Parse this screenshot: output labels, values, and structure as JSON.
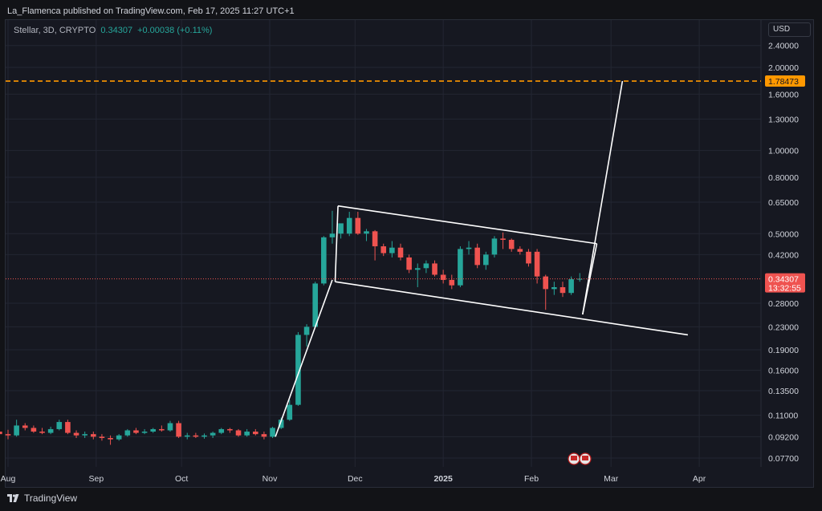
{
  "header": {
    "publisher_line": "La_Flamenca published on TradingView.com, Feb 17, 2025 11:27 UTC+1"
  },
  "legend": {
    "symbol": "Stellar, 3D, CRYPTO",
    "price": "0.34307",
    "change": "+0.00038 (+0.11%)"
  },
  "axis": {
    "currency": "USD"
  },
  "footer": {
    "brand": "TradingView"
  },
  "colors": {
    "up": "#26a69a",
    "down": "#ef5350",
    "target_line": "#ff9800",
    "channel": "#ffffff",
    "price_tag": "#ef5350",
    "background": "#161821"
  },
  "chart_data": {
    "type": "candlestick",
    "y_scale": "log",
    "ylim": [
      0.068,
      2.9
    ],
    "price_ticks": [
      "2.40000",
      "2.00000",
      "1.60000",
      "1.30000",
      "1.00000",
      "0.80000",
      "0.65000",
      "0.50000",
      "0.42000",
      "0.28000",
      "0.23000",
      "0.19000",
      "0.16000",
      "0.13500",
      "0.11000",
      "0.09200",
      "0.07700"
    ],
    "x_labels": [
      {
        "label": "Aug",
        "date": "2024-08-01",
        "bold": false
      },
      {
        "label": "Sep",
        "date": "2024-09-01",
        "bold": false
      },
      {
        "label": "Oct",
        "date": "2024-10-01",
        "bold": false
      },
      {
        "label": "Nov",
        "date": "2024-11-01",
        "bold": false
      },
      {
        "label": "Dec",
        "date": "2024-12-01",
        "bold": false
      },
      {
        "label": "2025",
        "date": "2025-01-01",
        "bold": true
      },
      {
        "label": "Feb",
        "date": "2025-02-01",
        "bold": false
      },
      {
        "label": "Mar",
        "date": "2025-03-01",
        "bold": false
      },
      {
        "label": "Apr",
        "date": "2025-04-01",
        "bold": false
      }
    ],
    "candles": [
      {
        "t": "2024-07-29",
        "o": 0.096,
        "h": 0.1,
        "l": 0.076,
        "c": 0.094
      },
      {
        "t": "2024-08-01",
        "o": 0.094,
        "h": 0.0975,
        "l": 0.09,
        "c": 0.093
      },
      {
        "t": "2024-08-04",
        "o": 0.093,
        "h": 0.106,
        "l": 0.092,
        "c": 0.101
      },
      {
        "t": "2024-08-07",
        "o": 0.101,
        "h": 0.103,
        "l": 0.097,
        "c": 0.099
      },
      {
        "t": "2024-08-10",
        "o": 0.099,
        "h": 0.101,
        "l": 0.095,
        "c": 0.096
      },
      {
        "t": "2024-08-13",
        "o": 0.096,
        "h": 0.099,
        "l": 0.094,
        "c": 0.095
      },
      {
        "t": "2024-08-16",
        "o": 0.095,
        "h": 0.1,
        "l": 0.094,
        "c": 0.098
      },
      {
        "t": "2024-08-19",
        "o": 0.098,
        "h": 0.106,
        "l": 0.097,
        "c": 0.104
      },
      {
        "t": "2024-08-22",
        "o": 0.104,
        "h": 0.106,
        "l": 0.094,
        "c": 0.095
      },
      {
        "t": "2024-08-25",
        "o": 0.095,
        "h": 0.097,
        "l": 0.091,
        "c": 0.093
      },
      {
        "t": "2024-08-28",
        "o": 0.093,
        "h": 0.096,
        "l": 0.091,
        "c": 0.094
      },
      {
        "t": "2024-08-31",
        "o": 0.094,
        "h": 0.096,
        "l": 0.09,
        "c": 0.092
      },
      {
        "t": "2024-09-03",
        "o": 0.092,
        "h": 0.094,
        "l": 0.089,
        "c": 0.091
      },
      {
        "t": "2024-09-06",
        "o": 0.091,
        "h": 0.093,
        "l": 0.086,
        "c": 0.09
      },
      {
        "t": "2024-09-09",
        "o": 0.09,
        "h": 0.094,
        "l": 0.089,
        "c": 0.093
      },
      {
        "t": "2024-09-12",
        "o": 0.093,
        "h": 0.098,
        "l": 0.092,
        "c": 0.097
      },
      {
        "t": "2024-09-15",
        "o": 0.097,
        "h": 0.099,
        "l": 0.094,
        "c": 0.095
      },
      {
        "t": "2024-09-18",
        "o": 0.095,
        "h": 0.098,
        "l": 0.094,
        "c": 0.096
      },
      {
        "t": "2024-09-21",
        "o": 0.096,
        "h": 0.099,
        "l": 0.095,
        "c": 0.098
      },
      {
        "t": "2024-09-24",
        "o": 0.098,
        "h": 0.101,
        "l": 0.096,
        "c": 0.097
      },
      {
        "t": "2024-09-27",
        "o": 0.097,
        "h": 0.105,
        "l": 0.096,
        "c": 0.103
      },
      {
        "t": "2024-09-30",
        "o": 0.103,
        "h": 0.105,
        "l": 0.091,
        "c": 0.092
      },
      {
        "t": "2024-10-03",
        "o": 0.092,
        "h": 0.095,
        "l": 0.09,
        "c": 0.093
      },
      {
        "t": "2024-10-06",
        "o": 0.093,
        "h": 0.095,
        "l": 0.091,
        "c": 0.092
      },
      {
        "t": "2024-10-09",
        "o": 0.092,
        "h": 0.0945,
        "l": 0.0905,
        "c": 0.093
      },
      {
        "t": "2024-10-12",
        "o": 0.093,
        "h": 0.096,
        "l": 0.091,
        "c": 0.095
      },
      {
        "t": "2024-10-15",
        "o": 0.095,
        "h": 0.099,
        "l": 0.094,
        "c": 0.098
      },
      {
        "t": "2024-10-18",
        "o": 0.098,
        "h": 0.099,
        "l": 0.095,
        "c": 0.097
      },
      {
        "t": "2024-10-21",
        "o": 0.097,
        "h": 0.098,
        "l": 0.092,
        "c": 0.093
      },
      {
        "t": "2024-10-24",
        "o": 0.093,
        "h": 0.098,
        "l": 0.092,
        "c": 0.096
      },
      {
        "t": "2024-10-27",
        "o": 0.096,
        "h": 0.098,
        "l": 0.093,
        "c": 0.094
      },
      {
        "t": "2024-10-30",
        "o": 0.094,
        "h": 0.096,
        "l": 0.09,
        "c": 0.092
      },
      {
        "t": "2024-11-02",
        "o": 0.092,
        "h": 0.1,
        "l": 0.091,
        "c": 0.099
      },
      {
        "t": "2024-11-05",
        "o": 0.099,
        "h": 0.108,
        "l": 0.098,
        "c": 0.106
      },
      {
        "t": "2024-11-08",
        "o": 0.106,
        "h": 0.125,
        "l": 0.105,
        "c": 0.12
      },
      {
        "t": "2024-11-11",
        "o": 0.12,
        "h": 0.22,
        "l": 0.119,
        "c": 0.215
      },
      {
        "t": "2024-11-14",
        "o": 0.215,
        "h": 0.235,
        "l": 0.195,
        "c": 0.23
      },
      {
        "t": "2024-11-17",
        "o": 0.23,
        "h": 0.335,
        "l": 0.228,
        "c": 0.33
      },
      {
        "t": "2024-11-20",
        "o": 0.33,
        "h": 0.49,
        "l": 0.325,
        "c": 0.485
      },
      {
        "t": "2024-11-23",
        "o": 0.485,
        "h": 0.605,
        "l": 0.46,
        "c": 0.5
      },
      {
        "t": "2024-11-26",
        "o": 0.5,
        "h": 0.54,
        "l": 0.48,
        "c": 0.545
      },
      {
        "t": "2024-11-29",
        "o": 0.5,
        "h": 0.6,
        "l": 0.49,
        "c": 0.57
      },
      {
        "t": "2024-12-02",
        "o": 0.57,
        "h": 0.6,
        "l": 0.495,
        "c": 0.5
      },
      {
        "t": "2024-12-05",
        "o": 0.5,
        "h": 0.52,
        "l": 0.47,
        "c": 0.51
      },
      {
        "t": "2024-12-08",
        "o": 0.51,
        "h": 0.515,
        "l": 0.4,
        "c": 0.45
      },
      {
        "t": "2024-12-11",
        "o": 0.45,
        "h": 0.46,
        "l": 0.415,
        "c": 0.425
      },
      {
        "t": "2024-12-14",
        "o": 0.425,
        "h": 0.47,
        "l": 0.41,
        "c": 0.445
      },
      {
        "t": "2024-12-17",
        "o": 0.445,
        "h": 0.46,
        "l": 0.4,
        "c": 0.41
      },
      {
        "t": "2024-12-20",
        "o": 0.41,
        "h": 0.42,
        "l": 0.36,
        "c": 0.37
      },
      {
        "t": "2024-12-23",
        "o": 0.37,
        "h": 0.39,
        "l": 0.32,
        "c": 0.375
      },
      {
        "t": "2024-12-26",
        "o": 0.375,
        "h": 0.4,
        "l": 0.36,
        "c": 0.39
      },
      {
        "t": "2024-12-29",
        "o": 0.39,
        "h": 0.4,
        "l": 0.35,
        "c": 0.355
      },
      {
        "t": "2025-01-01",
        "o": 0.355,
        "h": 0.37,
        "l": 0.33,
        "c": 0.34
      },
      {
        "t": "2025-01-04",
        "o": 0.34,
        "h": 0.355,
        "l": 0.315,
        "c": 0.325
      },
      {
        "t": "2025-01-07",
        "o": 0.325,
        "h": 0.45,
        "l": 0.32,
        "c": 0.44
      },
      {
        "t": "2025-01-10",
        "o": 0.44,
        "h": 0.47,
        "l": 0.42,
        "c": 0.445
      },
      {
        "t": "2025-01-13",
        "o": 0.445,
        "h": 0.46,
        "l": 0.375,
        "c": 0.385
      },
      {
        "t": "2025-01-16",
        "o": 0.385,
        "h": 0.43,
        "l": 0.37,
        "c": 0.42
      },
      {
        "t": "2025-01-19",
        "o": 0.42,
        "h": 0.49,
        "l": 0.41,
        "c": 0.48
      },
      {
        "t": "2025-01-22",
        "o": 0.48,
        "h": 0.505,
        "l": 0.44,
        "c": 0.475
      },
      {
        "t": "2025-01-25",
        "o": 0.475,
        "h": 0.48,
        "l": 0.43,
        "c": 0.44
      },
      {
        "t": "2025-01-28",
        "o": 0.44,
        "h": 0.45,
        "l": 0.42,
        "c": 0.43
      },
      {
        "t": "2025-01-31",
        "o": 0.43,
        "h": 0.44,
        "l": 0.38,
        "c": 0.39
      },
      {
        "t": "2025-02-03",
        "o": 0.43,
        "h": 0.44,
        "l": 0.33,
        "c": 0.35
      },
      {
        "t": "2025-02-06",
        "o": 0.35,
        "h": 0.355,
        "l": 0.265,
        "c": 0.315
      },
      {
        "t": "2025-02-09",
        "o": 0.315,
        "h": 0.335,
        "l": 0.3,
        "c": 0.32
      },
      {
        "t": "2025-02-12",
        "o": 0.32,
        "h": 0.335,
        "l": 0.295,
        "c": 0.305
      },
      {
        "t": "2025-02-15",
        "o": 0.305,
        "h": 0.35,
        "l": 0.3,
        "c": 0.342
      },
      {
        "t": "2025-02-18",
        "o": 0.342,
        "h": 0.36,
        "l": 0.335,
        "c": 0.3431
      }
    ],
    "target_price": "1.78473",
    "current_price": "0.34307",
    "countdown": "13:32:55",
    "annotations": {
      "pole_line": {
        "from": {
          "t": "2024-11-03",
          "price": 0.092
        },
        "to": {
          "t": "2024-11-23",
          "price": 0.34
        }
      },
      "channel_top": {
        "from": {
          "t": "2024-11-25",
          "price": 0.63
        },
        "to": {
          "t": "2025-02-24",
          "price": 0.46
        }
      },
      "channel_bottom": {
        "from": {
          "t": "2024-11-24",
          "price": 0.335
        },
        "to": {
          "t": "2025-03-28",
          "price": 0.215
        }
      },
      "channel_left": {
        "from": {
          "t": "2024-11-25",
          "price": 0.63
        },
        "to": {
          "t": "2024-11-24",
          "price": 0.335
        }
      },
      "channel_right": {
        "from": {
          "t": "2025-02-24",
          "price": 0.46
        },
        "to": {
          "t": "2025-02-19",
          "price": 0.255
        }
      },
      "breakout_line": {
        "from": {
          "t": "2025-02-19",
          "price": 0.255
        },
        "to": {
          "t": "2025-03-05",
          "price": 1.78473
        }
      }
    }
  }
}
